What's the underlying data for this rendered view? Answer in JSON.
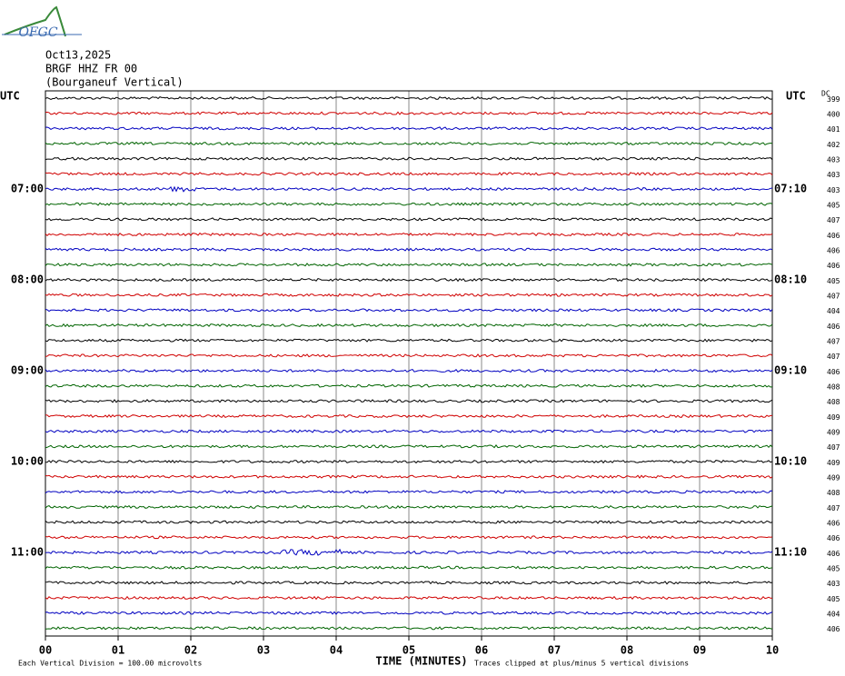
{
  "header": {
    "logo": "OFGC",
    "date": "Oct13,2025",
    "station": "BRGF HHZ FR 00",
    "location": "(Bourganeuf Vertical)"
  },
  "left_labels": [
    "UTC",
    "07:00",
    "08:00",
    "09:00",
    "10:00",
    "11:00"
  ],
  "right_labels": [
    "UTC",
    "07:10",
    "08:10",
    "09:10",
    "10:10",
    "11:10"
  ],
  "dc_header": "DC",
  "dc_values": [
    399,
    400,
    401,
    402,
    403,
    403,
    403,
    405,
    407,
    406,
    406,
    406,
    405,
    407,
    404,
    406,
    407,
    407,
    406,
    408,
    408,
    409,
    409,
    407,
    409,
    409,
    408,
    407,
    406,
    406,
    406,
    405,
    403,
    405,
    404,
    406
  ],
  "x_ticks": [
    "00",
    "01",
    "02",
    "03",
    "04",
    "05",
    "06",
    "07",
    "08",
    "09",
    "10"
  ],
  "x_label": "TIME (MINUTES)",
  "footer_left": "Each Vertical Division =  100.00 microvolts",
  "footer_right": "Traces clipped at plus/minus 5 vertical divisions"
}
